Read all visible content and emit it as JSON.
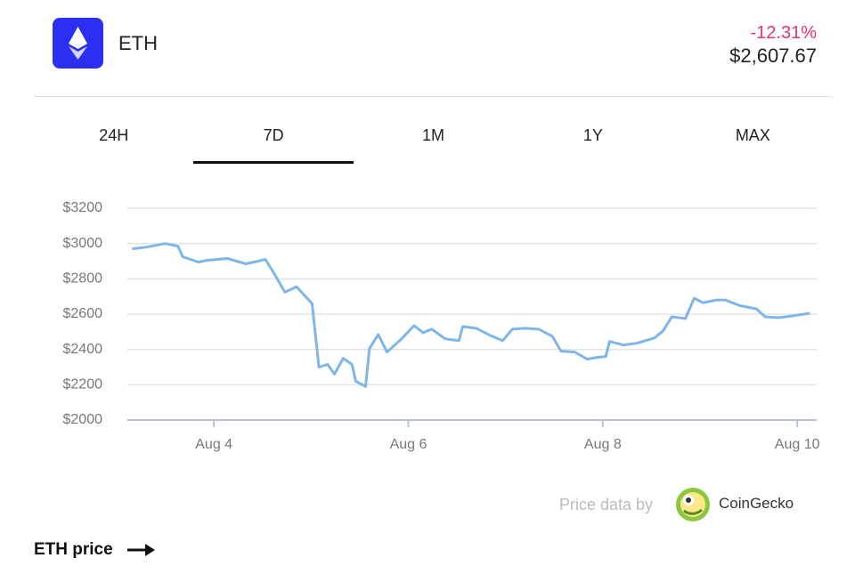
{
  "header": {
    "symbol": "ETH",
    "change": "-12.31%",
    "price": "$2,607.67"
  },
  "tabs": [
    "24H",
    "7D",
    "1M",
    "1Y",
    "MAX"
  ],
  "active_tab": "7D",
  "chart_data": {
    "type": "line",
    "color": "#7eb6ea",
    "grid": true,
    "x": [
      3.16,
      3.31,
      3.5,
      3.63,
      3.68,
      3.84,
      3.93,
      4.14,
      4.33,
      4.53,
      4.62,
      4.73,
      4.85,
      5.01,
      5.08,
      5.17,
      5.24,
      5.33,
      5.42,
      5.46,
      5.56,
      5.6,
      5.69,
      5.78,
      5.92,
      6.06,
      6.15,
      6.24,
      6.38,
      6.52,
      6.56,
      6.7,
      6.84,
      6.97,
      7.07,
      7.2,
      7.34,
      7.48,
      7.57,
      7.71,
      7.84,
      7.94,
      8.03,
      8.07,
      8.21,
      8.35,
      8.53,
      8.62,
      8.71,
      8.85,
      8.94,
      9.03,
      9.17,
      9.26,
      9.4,
      9.58,
      9.67,
      9.81,
      9.95,
      10.13
    ],
    "values": [
      2970,
      2980,
      3000,
      2985,
      2925,
      2895,
      2905,
      2915,
      2885,
      2910,
      2830,
      2725,
      2755,
      2660,
      2300,
      2315,
      2260,
      2350,
      2315,
      2220,
      2190,
      2405,
      2485,
      2385,
      2455,
      2535,
      2495,
      2515,
      2460,
      2450,
      2530,
      2520,
      2480,
      2450,
      2515,
      2520,
      2515,
      2475,
      2390,
      2385,
      2345,
      2355,
      2360,
      2445,
      2425,
      2435,
      2465,
      2505,
      2585,
      2575,
      2690,
      2665,
      2680,
      2680,
      2650,
      2630,
      2585,
      2580,
      2590,
      2605
    ],
    "xlim": [
      3.11,
      10.2
    ],
    "xticks": [
      {
        "value": 4,
        "label": "Aug 4"
      },
      {
        "value": 6,
        "label": "Aug 6"
      },
      {
        "value": 8,
        "label": "Aug 8"
      },
      {
        "value": 10,
        "label": "Aug 10"
      }
    ],
    "ylim": [
      2000,
      3200
    ],
    "yticks": [
      {
        "value": 2000,
        "label": "$2000"
      },
      {
        "value": 2200,
        "label": "$2200"
      },
      {
        "value": 2400,
        "label": "$2400"
      },
      {
        "value": 2600,
        "label": "$2600"
      },
      {
        "value": 2800,
        "label": "$2800"
      },
      {
        "value": 3000,
        "label": "$3000"
      },
      {
        "value": 3200,
        "label": "$3200"
      }
    ]
  },
  "footer": {
    "attribution": "Price data by",
    "provider": "CoinGecko",
    "link": "ETH price"
  }
}
